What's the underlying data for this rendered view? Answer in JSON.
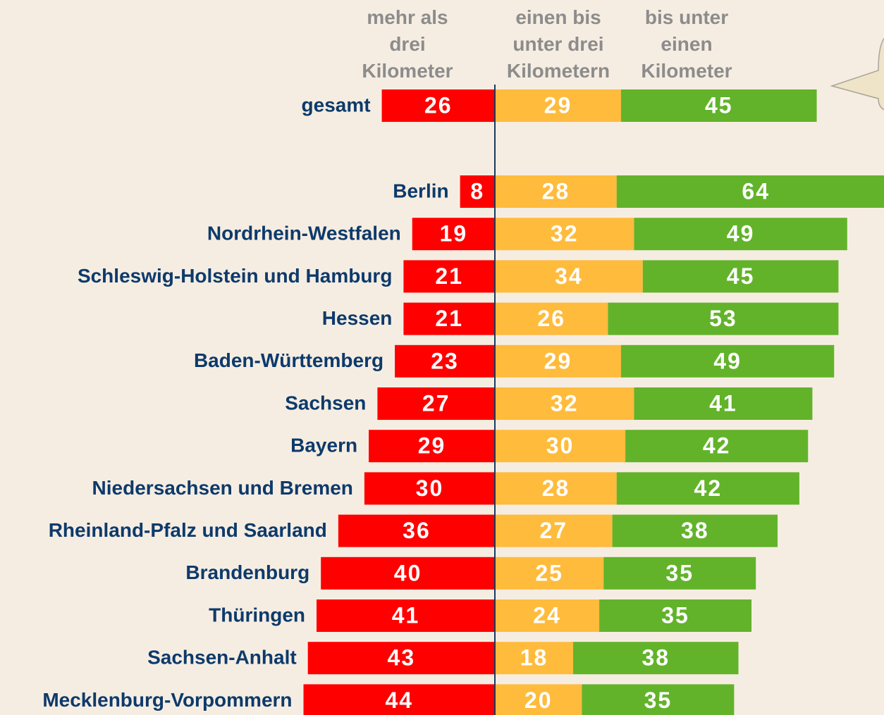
{
  "chart_data": {
    "type": "diverging-stacked-bar",
    "categories": [
      "gesamt",
      "Berlin",
      "Nordrhein-Westfalen",
      "Schleswig-Holstein und Hamburg",
      "Hessen",
      "Baden-Württemberg",
      "Sachsen",
      "Bayern",
      "Niedersachsen und Bremen",
      "Rheinland-Pfalz und Saarland",
      "Brandenburg",
      "Thüringen",
      "Sachsen-Anhalt",
      "Mecklenburg-Vorpommern"
    ],
    "series": [
      {
        "name": "mehr als\ndrei\nKilometer",
        "color": "#ff0000",
        "values": [
          26,
          8,
          19,
          21,
          21,
          23,
          27,
          29,
          30,
          36,
          40,
          41,
          43,
          44
        ]
      },
      {
        "name": "einen bis\nunter drei\nKilometern",
        "color": "#ffbb3c",
        "values": [
          29,
          28,
          32,
          34,
          26,
          29,
          32,
          30,
          28,
          27,
          25,
          24,
          18,
          20
        ]
      },
      {
        "name": "bis unter\neinen\nKilometer",
        "color": "#62b32a",
        "values": [
          45,
          64,
          49,
          45,
          53,
          49,
          41,
          42,
          42,
          38,
          35,
          35,
          38,
          35
        ]
      }
    ]
  }
}
